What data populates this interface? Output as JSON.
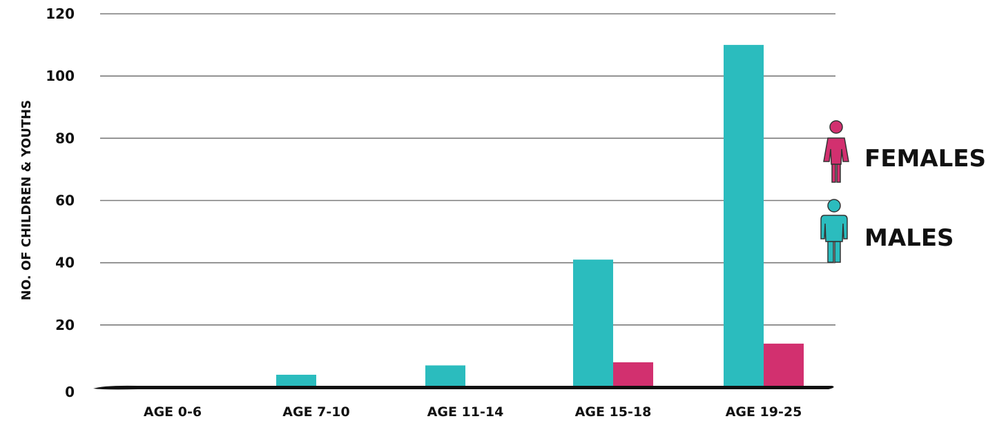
{
  "chart_data": {
    "type": "bar",
    "categories": [
      "AGE 0-6",
      "AGE 7-10",
      "AGE 11-14",
      "AGE 15-18",
      "AGE 19-25"
    ],
    "series": [
      {
        "name": "MALES",
        "color": "#2bbcbe",
        "values": [
          0,
          4,
          7,
          41,
          110
        ]
      },
      {
        "name": "FEMALES",
        "color": "#d2306f",
        "values": [
          0,
          0,
          0,
          8,
          14
        ]
      }
    ],
    "ylabel": "NO. OF CHILDREN & YOUTHS",
    "xlabel": "",
    "ylim": [
      0,
      120
    ],
    "yticks": [
      0,
      20,
      40,
      60,
      80,
      100,
      120
    ],
    "grid": true,
    "legend_position": "right"
  },
  "legend": {
    "females": {
      "label": "FEMALES",
      "icon": "female-figure-icon",
      "color": "#d2306f"
    },
    "males": {
      "label": "MALES",
      "icon": "male-figure-icon",
      "color": "#2bbcbe"
    }
  }
}
